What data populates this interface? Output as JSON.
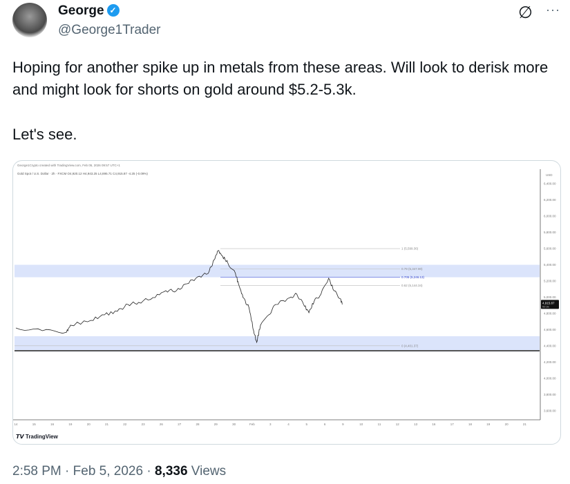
{
  "author": {
    "name": "George",
    "handle": "@George1Trader",
    "verified": true,
    "verified_color": "#1d9bf0"
  },
  "actions": {
    "grok_icon": "slashed-circle-icon",
    "more_icon": "more-icon",
    "more_label": "···"
  },
  "tweet": {
    "text": "Hoping for another spike up in metals from these areas. Will look to derisk more and might look for shorts on gold around $5.2-5.3k.",
    "text2": "Let's see."
  },
  "footer": {
    "time": "2:58 PM",
    "date": "Feb 5, 2026",
    "views_count": "8,336",
    "views_label": "Views",
    "sep": "·"
  },
  "chart_data": {
    "type": "line",
    "caption": "George1Crypto created with TradingView.com, Feb 05, 2026 09:57 UTC+1",
    "title": "Gold Spot / U.S. Dollar · 2h · FXCM  O4,920.12 H4,943.25 L4,895.71 C4,915.87 -4.25 (-0.09%)",
    "currency": "USD",
    "brand": "TradingView",
    "ylim": [
      3400,
      6500
    ],
    "y_ticks": [
      "6,400.00",
      "6,200.00",
      "6,000.00",
      "5,800.00",
      "5,600.00",
      "5,400.00",
      "5,200.00",
      "5,000.00",
      "4,800.00",
      "4,600.00",
      "4,400.00",
      "4,200.00",
      "4,000.00",
      "3,800.00",
      "3,600.00"
    ],
    "y_tick_values": [
      6400,
      6200,
      6000,
      5800,
      5600,
      5400,
      5200,
      5000,
      4800,
      4600,
      4400,
      4200,
      4000,
      3800,
      3600
    ],
    "x_ticks": [
      "14",
      "15",
      "16",
      "19",
      "20",
      "21",
      "22",
      "23",
      "26",
      "27",
      "28",
      "29",
      "30",
      "Feb",
      "3",
      "4",
      "5",
      "6",
      "9",
      "10",
      "11",
      "12",
      "13",
      "16",
      "17",
      "18",
      "19",
      "20",
      "21"
    ],
    "last_price": {
      "value": 4915.87,
      "label": "4,915.87",
      "sub": "02:3x"
    },
    "fib_levels": [
      {
        "ratio": 1,
        "price": 5599.36,
        "label": "1 (5,599.36)"
      },
      {
        "ratio": 0.79,
        "price": 5347.9,
        "label": "0.79 (5,347.90)"
      },
      {
        "ratio": 0.705,
        "price": 5246.13,
        "label": "0.705 (5,246.13)",
        "highlight": true
      },
      {
        "ratio": 0.62,
        "price": 5144.34,
        "label": "0.62 (5,144.34)"
      },
      {
        "ratio": 0,
        "price": 4401.37,
        "label": "0 (4,401.37)"
      }
    ],
    "zones": [
      {
        "from": 5246.13,
        "to": 5400,
        "color": "#dbe4fb"
      },
      {
        "from": 4330,
        "to": 4520,
        "color": "#dbe4fb"
      }
    ],
    "support_line": 4340,
    "series": [
      {
        "points": [
          [
            "14 00:00",
            4621
          ],
          [
            "15 11:00",
            4587
          ],
          [
            "16 19:00",
            4570
          ],
          [
            "19 00:00",
            4655
          ],
          [
            "20 03:00",
            4715
          ],
          [
            "20 21:00",
            4783
          ],
          [
            "21 14:00",
            4826
          ],
          [
            "22 04:00",
            4911
          ],
          [
            "22 18:00",
            4936
          ],
          [
            "23 13:00",
            4996
          ],
          [
            "26 06:00",
            5081
          ],
          [
            "26 20:00",
            5081
          ],
          [
            "27 10:00",
            5166
          ],
          [
            "28 00:00",
            5251
          ],
          [
            "28 14:00",
            5294
          ],
          [
            "28 22:00",
            5464
          ],
          [
            "29 03:00",
            5574
          ],
          [
            "29 09:00",
            5506
          ],
          [
            "29 16:00",
            5421
          ],
          [
            "30 02:00",
            5294
          ],
          [
            "30 06:00",
            5166
          ],
          [
            "30 12:00",
            4996
          ],
          [
            "30 20:00",
            4868
          ],
          [
            "Feb 02:00",
            4587
          ],
          [
            "Feb 06:00",
            4443
          ],
          [
            "Feb 11:00",
            4655
          ],
          [
            "Feb 22:00",
            4783
          ],
          [
            "3 07:00",
            4911
          ],
          [
            "4 02:00",
            4996
          ],
          [
            "4 11:00",
            5038
          ],
          [
            "4 20:00",
            4911
          ],
          [
            "5 03:00",
            4809
          ],
          [
            "5 10:00",
            4953
          ],
          [
            "5 19:00",
            5038
          ],
          [
            "6 05:00",
            5234
          ],
          [
            "6 12:00",
            5081
          ],
          [
            "6 21:00",
            4979
          ],
          [
            "6 23:00",
            4911
          ]
        ]
      }
    ]
  }
}
